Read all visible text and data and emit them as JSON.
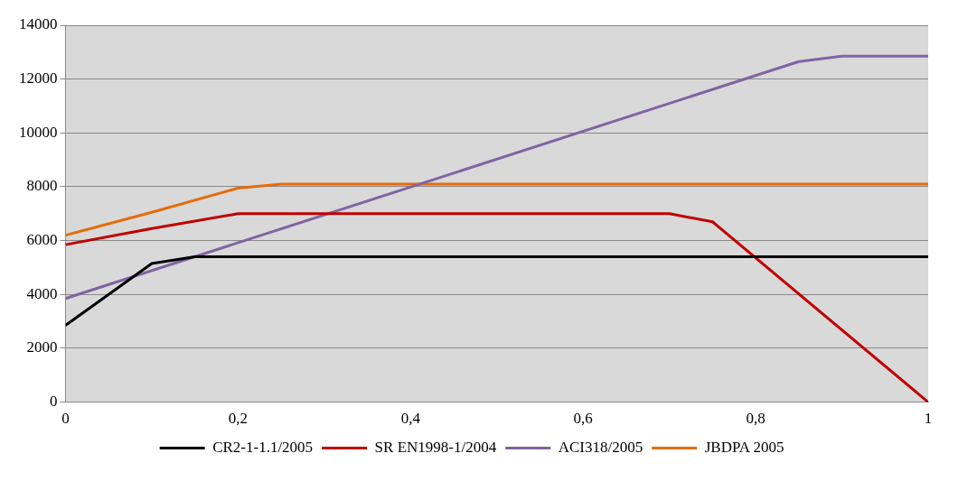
{
  "chart_data": {
    "type": "line",
    "xlim": [
      0,
      1
    ],
    "xticks": [
      0,
      {
        "value": 0.2,
        "label": "0,2"
      },
      {
        "value": 0.4,
        "label": "0,4"
      },
      {
        "value": 0.6,
        "label": "0,6"
      },
      {
        "value": 0.8,
        "label": "0,8"
      },
      1
    ],
    "ylim": [
      0,
      14000
    ],
    "yticks": [
      0,
      2000,
      4000,
      6000,
      8000,
      10000,
      12000,
      14000
    ],
    "grid": "y",
    "legend": "bottom",
    "marker": "none",
    "line_style": "solid",
    "series": [
      {
        "name": "CR2-1-1.1/2005",
        "color": "#000000",
        "x": [
          0,
          0.1,
          0.15,
          1
        ],
        "values": [
          2850,
          5150,
          5400,
          5400
        ]
      },
      {
        "name": "SR EN1998-1/2004",
        "color": "#c00000",
        "x": [
          0,
          0.1,
          0.2,
          0.7,
          0.75,
          1
        ],
        "values": [
          5850,
          6450,
          7000,
          7000,
          6700,
          0
        ]
      },
      {
        "name": "ACI318/2005",
        "color": "#8064a2",
        "x": [
          0,
          0.85,
          0.9,
          1
        ],
        "values": [
          3850,
          12650,
          12850,
          12850
        ]
      },
      {
        "name": "JBDPA 2005",
        "color": "#e46c0a",
        "x": [
          0,
          0.1,
          0.2,
          0.25,
          1
        ],
        "values": [
          6200,
          7050,
          7950,
          8100,
          8100
        ]
      }
    ]
  }
}
